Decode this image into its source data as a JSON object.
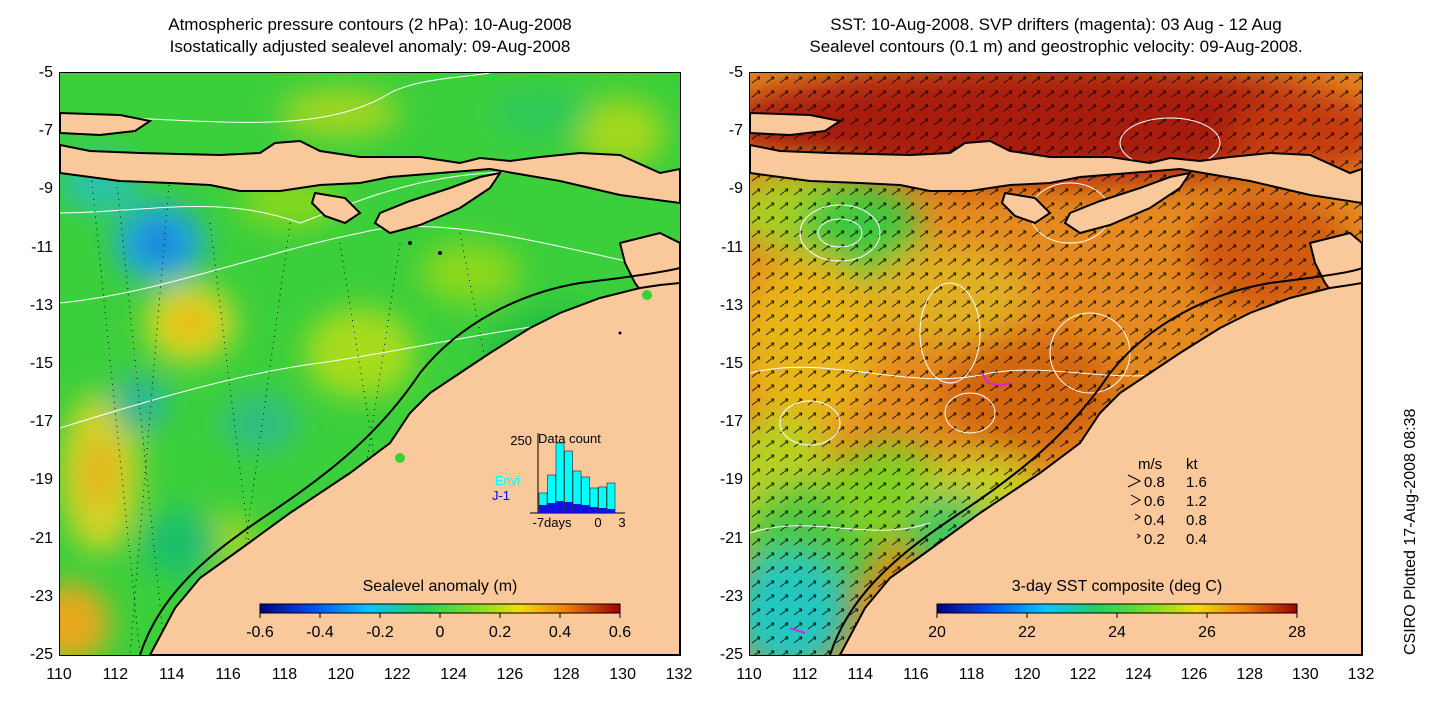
{
  "left_panel": {
    "title_line1": "Atmospheric pressure contours (2 hPa): 10-Aug-2008",
    "title_line2": "Isostatically adjusted sealevel anomaly: 09-Aug-2008",
    "colorbar": {
      "label": "Sealevel anomaly (m)",
      "ticks": [
        "-0.6",
        "-0.4",
        "-0.2",
        "0",
        "0.2",
        "0.4",
        "0.6"
      ]
    },
    "inset": {
      "y_max_label": "250",
      "title": "Data count",
      "series": [
        "Envi",
        "J-1"
      ],
      "x_labels": [
        "-7days",
        "0",
        "3"
      ]
    }
  },
  "right_panel": {
    "title_line1": "SST: 10-Aug-2008. SVP drifters (magenta): 03 Aug - 12 Aug",
    "title_line2": "Sealevel contours (0.1 m) and geostrophic velocity: 09-Aug-2008.",
    "colorbar": {
      "label": "3-day SST composite (deg C)",
      "ticks": [
        "20",
        "22",
        "24",
        "26",
        "28"
      ]
    },
    "velocity_legend": {
      "header_ms": "m/s",
      "header_kt": "kt",
      "rows": [
        {
          "ms": "0.8",
          "kt": "1.6"
        },
        {
          "ms": "0.6",
          "kt": "1.2"
        },
        {
          "ms": "0.4",
          "kt": "0.8"
        },
        {
          "ms": "0.2",
          "kt": "0.4"
        }
      ]
    }
  },
  "axes": {
    "y_ticks": [
      "-5",
      "-7",
      "-9",
      "-11",
      "-13",
      "-15",
      "-17",
      "-19",
      "-21",
      "-23",
      "-25"
    ],
    "x_ticks": [
      "110",
      "112",
      "114",
      "116",
      "118",
      "120",
      "122",
      "124",
      "126",
      "128",
      "130",
      "132"
    ]
  },
  "credit": "CSIRO Plotted 17-Aug-2008 08:38",
  "colors": {
    "land": "#f9c89b",
    "sla_background": "#37d137",
    "sst_background": "#e58a1f",
    "sst_warm": "#a81b0c",
    "contour": "#ffffff",
    "drifter": "#e020e0"
  }
}
